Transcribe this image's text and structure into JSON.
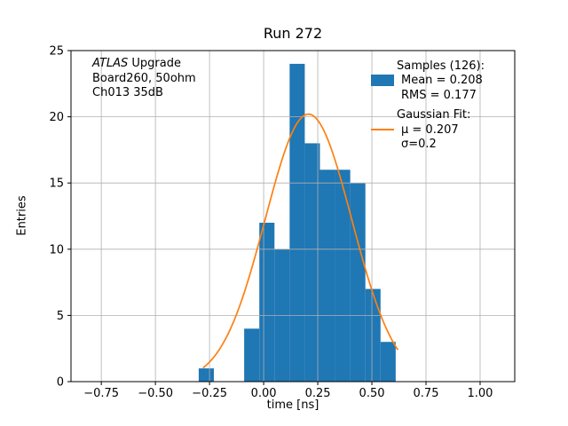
{
  "figure": {
    "title": "Run 272",
    "xlabel": "time [ns]",
    "ylabel": "Entries"
  },
  "annotation": {
    "line1_italic": "ATLAS",
    "line1_rest": " Upgrade",
    "line2": "Board260, 50ohm",
    "line3": "Ch013 35dB"
  },
  "legend": {
    "samples_title": "Samples (126):",
    "mean_label": "Mean = 0.208",
    "rms_label": "RMS = 0.177",
    "fit_title": "Gaussian Fit:",
    "mu_label": "μ = 0.207",
    "sigma_label": "σ=0.2"
  },
  "colors": {
    "histogram": "#1f77b4",
    "fit_line": "#ff7f0e",
    "grid": "#b0b0b0",
    "axes": "#000000"
  },
  "chart_data": {
    "type": "bar",
    "subtype": "histogram-with-gaussian-fit",
    "title": "Run 272",
    "xlabel": "time [ns]",
    "ylabel": "Entries",
    "xlim": [
      -0.89,
      1.16
    ],
    "ylim": [
      0,
      25
    ],
    "grid": true,
    "legend_position": "upper right",
    "histogram": {
      "name": "Samples",
      "n_samples": 126,
      "mean": 0.208,
      "rms": 0.177,
      "bin_edges": [
        -0.3,
        -0.23,
        -0.16,
        -0.09,
        -0.02,
        0.05,
        0.12,
        0.19,
        0.26,
        0.33,
        0.4,
        0.47,
        0.54,
        0.61
      ],
      "counts": [
        1,
        0,
        0,
        4,
        12,
        10,
        24,
        18,
        16,
        16,
        15,
        7,
        3
      ]
    },
    "gaussian_fit": {
      "name": "Gaussian Fit",
      "amplitude": 20.2,
      "mu": 0.207,
      "sigma": 0.2,
      "x_range": [
        -0.28,
        0.62
      ]
    },
    "xticks": [
      {
        "value": -0.75,
        "label": "−0.75"
      },
      {
        "value": -0.5,
        "label": "−0.50"
      },
      {
        "value": -0.25,
        "label": "−0.25"
      },
      {
        "value": 0.0,
        "label": "0.00"
      },
      {
        "value": 0.25,
        "label": "0.25"
      },
      {
        "value": 0.5,
        "label": "0.50"
      },
      {
        "value": 0.75,
        "label": "0.75"
      },
      {
        "value": 1.0,
        "label": "1.00"
      }
    ],
    "yticks": [
      {
        "value": 0,
        "label": "0"
      },
      {
        "value": 5,
        "label": "5"
      },
      {
        "value": 10,
        "label": "10"
      },
      {
        "value": 15,
        "label": "15"
      },
      {
        "value": 20,
        "label": "20"
      },
      {
        "value": 25,
        "label": "25"
      }
    ]
  }
}
